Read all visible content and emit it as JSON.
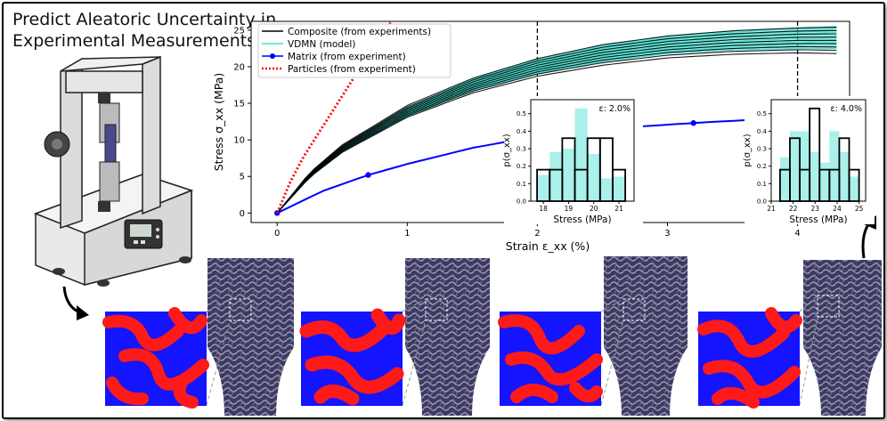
{
  "headline": {
    "line1": "Predict Aleatoric Uncertainty in",
    "line2": "Experimental Measurements"
  },
  "chart_data": [
    {
      "type": "line",
      "xlabel": "Strain ε_xx (%)",
      "ylabel": "Stress σ_xx (MPa)",
      "xlim": [
        -0.2,
        4.4
      ],
      "ylim": [
        -1.3,
        26.2
      ],
      "xticks": [
        0,
        1,
        2,
        3,
        4
      ],
      "yticks": [
        0,
        5,
        10,
        15,
        20,
        25
      ],
      "grid": false,
      "legend_position": "top-left",
      "legend": [
        "Composite (from experiments)",
        "VDMN (model)",
        "Matrix (from experiment)",
        "Particles (from experiment)"
      ],
      "vlines": [
        2.0,
        4.0
      ],
      "series": [
        {
          "name": "Composite (from experiments)",
          "color": "#000000",
          "style": "solid",
          "note": "ensemble of ~10 curves reaching 21-25 MPa at 4.3%",
          "x": [
            0,
            0.25,
            0.5,
            1.0,
            1.5,
            2.0,
            2.5,
            3.0,
            3.5,
            4.0,
            4.3
          ],
          "y": [
            0,
            5.2,
            8.8,
            13.9,
            17.4,
            19.9,
            21.6,
            22.7,
            23.3,
            23.6,
            23.6
          ],
          "spread": [
            0,
            0.3,
            0.5,
            0.8,
            1.0,
            1.2,
            1.4,
            1.5,
            1.6,
            1.7,
            1.8
          ]
        },
        {
          "name": "VDMN (model)",
          "color": "#40e0d0",
          "style": "solid",
          "note": "ensemble of ~30 curves reaching 22-25.5 MPa at 4.3%",
          "x": [
            0,
            0.25,
            0.5,
            1.0,
            1.5,
            2.0,
            2.5,
            3.0,
            3.5,
            4.0,
            4.3
          ],
          "y": [
            0,
            5.1,
            8.7,
            13.8,
            17.5,
            20.0,
            21.8,
            23.0,
            23.6,
            23.9,
            24.0
          ],
          "spread": [
            0,
            0.25,
            0.4,
            0.6,
            0.8,
            1.0,
            1.1,
            1.2,
            1.3,
            1.4,
            1.5
          ]
        },
        {
          "name": "Matrix (from experiment)",
          "color": "#0000ff",
          "style": "solid-marker",
          "x": [
            0,
            0.35,
            0.7,
            1.0,
            1.5,
            2.0,
            2.5,
            3.2,
            3.6,
            4.0,
            4.3
          ],
          "y": [
            0,
            3.0,
            5.2,
            6.7,
            8.9,
            10.5,
            11.5,
            12.3,
            12.7,
            12.9,
            13.0
          ],
          "marker_x": [
            0,
            0.7,
            2.0,
            3.2
          ]
        },
        {
          "name": "Particles (from experiment)",
          "color": "#ff0000",
          "style": "dotted",
          "x": [
            0,
            0.1,
            0.2,
            0.3,
            0.4,
            0.5,
            0.6,
            0.7,
            0.8,
            0.88
          ],
          "y": [
            0,
            4.2,
            7.6,
            10.4,
            13.2,
            16.0,
            18.8,
            21.6,
            24.4,
            26.2
          ]
        }
      ]
    },
    {
      "type": "histogram",
      "label": "ε: 2.0%",
      "xlabel": "Stress (MPa)",
      "ylabel": "p(σ_xx)",
      "xlim": [
        17.5,
        21.6
      ],
      "ylim": [
        0,
        0.58
      ],
      "xticks": [
        18,
        19,
        20,
        21
      ],
      "yticks": [
        0.0,
        0.1,
        0.2,
        0.3,
        0.4,
        0.5
      ],
      "bin_edges": [
        17.75,
        18.25,
        18.75,
        19.25,
        19.75,
        20.25,
        20.75,
        21.25
      ],
      "composite": [
        0.18,
        0.18,
        0.36,
        0.18,
        0.36,
        0.36,
        0.18
      ],
      "vdmn": [
        0.15,
        0.28,
        0.3,
        0.53,
        0.27,
        0.13,
        0.14
      ]
    },
    {
      "type": "histogram",
      "label": "ε: 4.0%",
      "xlabel": "Stress (MPa)",
      "ylabel": "p(σ_xx)",
      "xlim": [
        21.0,
        25.3
      ],
      "ylim": [
        0,
        0.58
      ],
      "xticks": [
        21,
        22,
        23,
        24,
        25
      ],
      "yticks": [
        0.0,
        0.1,
        0.2,
        0.3,
        0.4,
        0.5
      ],
      "bin_edges": [
        21.4,
        21.85,
        22.3,
        22.75,
        23.2,
        23.65,
        24.1,
        24.55,
        25.0
      ],
      "composite": [
        0.18,
        0.36,
        0.18,
        0.53,
        0.18,
        0.18,
        0.36,
        0.18
      ],
      "vdmn": [
        0.25,
        0.4,
        0.4,
        0.28,
        0.22,
        0.4,
        0.28,
        0.14
      ]
    }
  ]
}
